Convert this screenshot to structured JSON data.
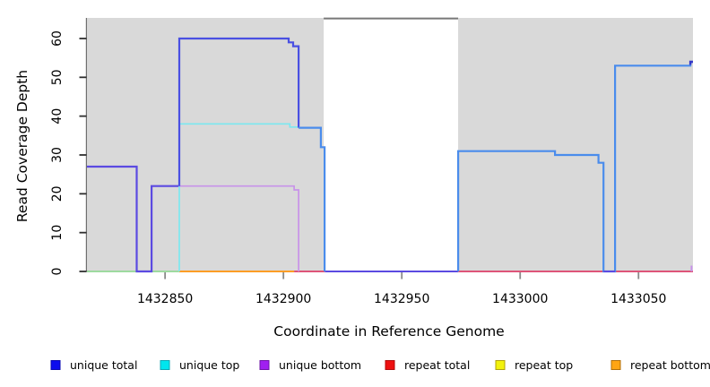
{
  "chart_data": {
    "type": "line",
    "title": "",
    "xlabel": "Coordinate in Reference Genome",
    "ylabel": "Read Coverage Depth",
    "xlim": [
      1432817,
      1433073
    ],
    "ylim": [
      0,
      65.3
    ],
    "x_ticks": [
      1432850,
      1432900,
      1432950,
      1433000,
      1433050
    ],
    "y_ticks": [
      0,
      10,
      20,
      30,
      40,
      50,
      60
    ],
    "grid": false,
    "legend_position": "bottom",
    "legend": [
      {
        "label": "unique total",
        "color": "#0D0DEE",
        "border": "#0909B0"
      },
      {
        "label": "unique top",
        "color": "#00E6EE",
        "border": "#0AA7B5"
      },
      {
        "label": "unique bottom",
        "color": "#A020F0",
        "border": "#6E14A6"
      },
      {
        "label": "repeat total",
        "color": "#EE1010",
        "border": "#B00A0A"
      },
      {
        "label": "repeat top",
        "color": "#F2F20C",
        "border": "#B0A10A"
      },
      {
        "label": "repeat bottom",
        "color": "#FFA513",
        "border": "#B06F0A"
      }
    ],
    "shaded_regions": [
      {
        "x0": 1432817,
        "x1": 1432917,
        "fill": "#D9D9D9"
      },
      {
        "x0": 1432973.8,
        "x1": 1433073,
        "fill": "#D9D9D9"
      }
    ],
    "gap_top_border": {
      "x0": 1432917,
      "x1": 1432973.8,
      "color": "#777777"
    },
    "series": [
      {
        "name": "unique total",
        "steps": [
          [
            1432817,
            27
          ],
          [
            1432838,
            0
          ],
          [
            1432844,
            22
          ],
          [
            1432856,
            60
          ],
          [
            1432902,
            59
          ],
          [
            1432904,
            58
          ],
          [
            1432906,
            37
          ],
          [
            1432916,
            32
          ],
          [
            1432918,
            0
          ],
          [
            1432974,
            31
          ],
          [
            1433015,
            30
          ],
          [
            1433033,
            28
          ],
          [
            1433035,
            0
          ],
          [
            1433040,
            53
          ],
          [
            1433072,
            54
          ]
        ]
      },
      {
        "name": "unique top",
        "steps": [
          [
            1432817,
            0
          ],
          [
            1432856,
            38
          ],
          [
            1432903,
            37
          ],
          [
            1432918,
            0
          ],
          [
            1432974,
            31
          ],
          [
            1433015,
            30
          ],
          [
            1433033,
            28
          ],
          [
            1433035,
            0
          ],
          [
            1433040,
            53
          ],
          [
            1433072,
            54
          ]
        ]
      },
      {
        "name": "unique bottom",
        "steps": [
          [
            1432817,
            27
          ],
          [
            1432838,
            0
          ],
          [
            1432844,
            22
          ],
          [
            1432905,
            21
          ],
          [
            1432907,
            0
          ],
          [
            1433072,
            1
          ]
        ]
      },
      {
        "name": "repeat total",
        "steps": [
          [
            1432817,
            0
          ]
        ]
      },
      {
        "name": "repeat top",
        "steps": [
          [
            1432817,
            0
          ]
        ]
      },
      {
        "name": "repeat bottom",
        "steps": [
          [
            1432817,
            0
          ]
        ]
      }
    ],
    "drawn_lines": [
      {
        "name": "zero-line-green-overlap",
        "color": "#92D795",
        "width": 1.7,
        "points": [
          [
            1432817,
            0
          ],
          [
            1432856,
            0
          ]
        ]
      },
      {
        "name": "zero-line-repeat-bottom-orange",
        "color": "#FC9D26",
        "width": 2,
        "points": [
          [
            1432856,
            0
          ],
          [
            1432904.5,
            0
          ]
        ]
      },
      {
        "name": "zero-line-repeat-total-red-left",
        "color": "#DB3F68",
        "width": 1.8,
        "points": [
          [
            1432904.5,
            0
          ],
          [
            1432917.5,
            0
          ]
        ]
      },
      {
        "name": "zero-line-repeat-total-red-right",
        "color": "#DB3F68",
        "width": 1.8,
        "points": [
          [
            1432973.8,
            0
          ],
          [
            1433073,
            0
          ]
        ]
      },
      {
        "name": "zero-line-unique-total-gap",
        "color": "#5B4AE1",
        "width": 2,
        "points": [
          [
            1432917.5,
            0
          ],
          [
            1432973.8,
            0
          ]
        ]
      },
      {
        "name": "unique-total-left-segment",
        "color": "#5B4AE1",
        "width": 2.2,
        "points": [
          [
            1432817,
            27
          ],
          [
            1432838,
            27
          ],
          [
            1432838,
            0
          ],
          [
            1432844.3,
            0
          ],
          [
            1432844.3,
            22
          ],
          [
            1432856,
            22
          ]
        ]
      },
      {
        "name": "unique-top-line",
        "color": "#7CE8F0",
        "width": 1.7,
        "points": [
          [
            1432856,
            0
          ],
          [
            1432856,
            38
          ],
          [
            1432902.7,
            38
          ],
          [
            1432902.7,
            37.2
          ],
          [
            1432906.4,
            37.2
          ]
        ]
      },
      {
        "name": "unique-bottom-line",
        "color": "#C892E9",
        "width": 1.7,
        "points": [
          [
            1432856,
            22
          ],
          [
            1432904.5,
            22
          ],
          [
            1432904.5,
            21
          ],
          [
            1432906.4,
            21
          ],
          [
            1432906.4,
            0
          ]
        ]
      },
      {
        "name": "unique-total-peak-60",
        "color": "#4A50E2",
        "width": 2.2,
        "points": [
          [
            1432856,
            22
          ],
          [
            1432856,
            60
          ],
          [
            1432902.2,
            60
          ],
          [
            1432902.2,
            59
          ],
          [
            1432904.1,
            59
          ],
          [
            1432904.1,
            58
          ],
          [
            1432906.4,
            58
          ],
          [
            1432906.4,
            37
          ]
        ]
      },
      {
        "name": "unique-total-mid-drop",
        "color": "#4A8CEC",
        "width": 2.2,
        "points": [
          [
            1432906.4,
            37
          ],
          [
            1432915.8,
            37
          ],
          [
            1432915.8,
            32
          ],
          [
            1432917.4,
            32
          ],
          [
            1432917.4,
            0
          ]
        ]
      },
      {
        "name": "unique-total-right-segment",
        "color": "#4A8CEC",
        "width": 2.2,
        "points": [
          [
            1432973.8,
            0
          ],
          [
            1432973.8,
            31
          ],
          [
            1433014.7,
            31
          ],
          [
            1433014.7,
            30
          ],
          [
            1433033.1,
            30
          ],
          [
            1433033.1,
            28
          ],
          [
            1433035.2,
            28
          ],
          [
            1433035.2,
            0
          ],
          [
            1433040.1,
            0
          ],
          [
            1433040.1,
            53
          ],
          [
            1433071.9,
            53
          ],
          [
            1433071.9,
            54
          ],
          [
            1433073,
            54
          ]
        ]
      },
      {
        "name": "zero-line-violet-right-gap",
        "color": "#5B4AE1",
        "width": 2,
        "points": [
          [
            1433035.2,
            0
          ],
          [
            1433040.1,
            0
          ]
        ]
      },
      {
        "name": "line-end-cap-dark",
        "color": "#3538C8",
        "width": 2.4,
        "points": [
          [
            1433071.9,
            53.2
          ],
          [
            1433071.9,
            54
          ],
          [
            1433073,
            54
          ]
        ]
      },
      {
        "name": "right-edge-unique-bottom-tick",
        "color": "#C892E9",
        "width": 2,
        "points": [
          [
            1433072.4,
            0
          ],
          [
            1433072.4,
            1.5
          ]
        ]
      }
    ]
  },
  "colors": {
    "background": "#FFFFFF",
    "region_fill": "#D9D9D9",
    "plot_border": "#6E6E6E",
    "y_tick": "#2F2F2F",
    "x_tick": "#8A8A8A",
    "label_text": "#000000"
  }
}
